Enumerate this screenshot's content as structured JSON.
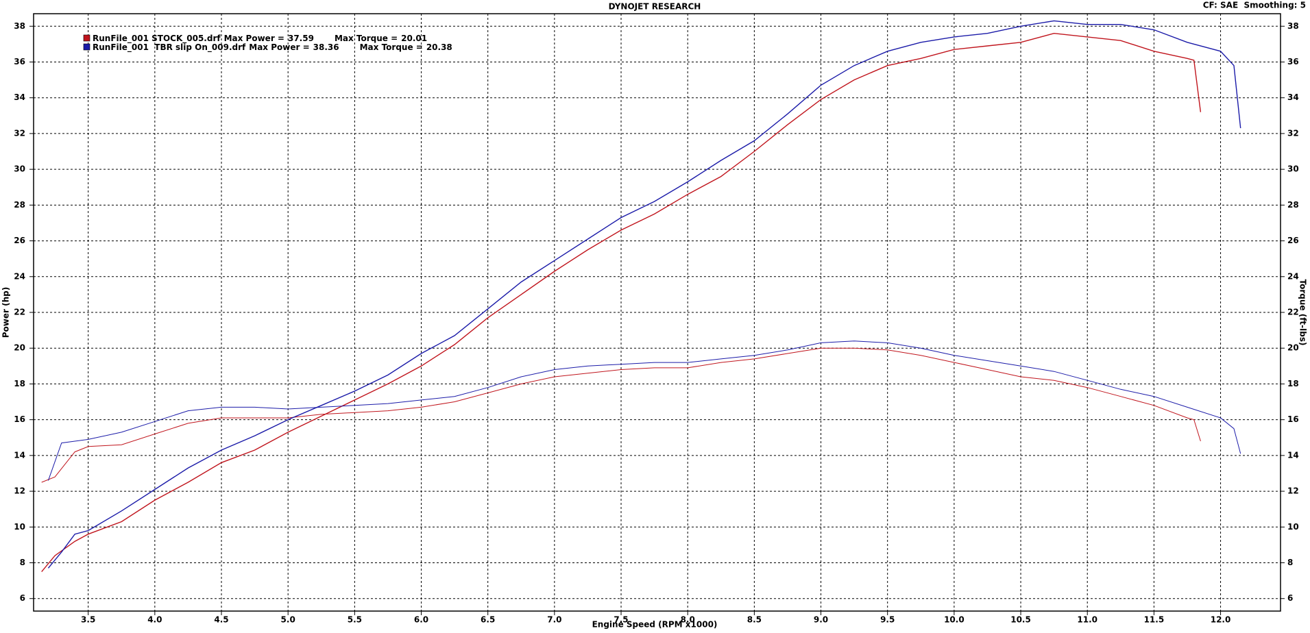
{
  "chart_data": {
    "type": "line",
    "title": "DYNOJET RESEARCH",
    "subtitle": "CF: SAE  Smoothing: 5",
    "x_label": "Engine Speed (RPM x1000)",
    "y_label": "Power (hp)",
    "y2_label": "Torque (ft-lbs)",
    "max_power_label": "Max Power =",
    "max_torque_label": "Max Torque =",
    "grid": true,
    "xlim": [
      3.09,
      12.45
    ],
    "xticks": [
      3.5,
      {
        "value": 4,
        "label": "4.0"
      },
      4.5,
      {
        "value": 5,
        "label": "5.0"
      },
      5.5,
      {
        "value": 6,
        "label": "6.0"
      },
      6.5,
      {
        "value": 7,
        "label": "7.0"
      },
      7.5,
      {
        "value": 8,
        "label": "8.0"
      },
      8.5,
      {
        "value": 9,
        "label": "9.0"
      },
      9.5,
      {
        "value": 10,
        "label": "10.0"
      },
      10.5,
      {
        "value": 11,
        "label": "11.0"
      },
      11.5,
      {
        "value": 12,
        "label": "12.0"
      }
    ],
    "ylim": [
      5.3,
      38.7
    ],
    "yticks": [
      6,
      8,
      10,
      12,
      14,
      16,
      18,
      20,
      22,
      24,
      26,
      28,
      30,
      32,
      34,
      36,
      38
    ],
    "y2lim": [
      5.3,
      38.7
    ],
    "y2ticks": [
      6,
      8,
      10,
      12,
      14,
      16,
      18,
      20,
      22,
      24,
      26,
      28,
      30,
      32,
      34,
      36,
      38
    ],
    "series": [
      {
        "name": "RunFile_001 STOCK_005.drf",
        "color": "#c0141c",
        "max_power": 37.59,
        "max_torque": 20.01,
        "x": [
          3.15,
          3.25,
          3.4,
          3.5,
          3.75,
          4,
          4.25,
          4.5,
          4.75,
          5,
          5.25,
          5.5,
          5.75,
          6,
          6.25,
          6.5,
          6.75,
          7,
          7.25,
          7.5,
          7.75,
          8,
          8.25,
          8.5,
          8.75,
          9,
          9.25,
          9.5,
          9.75,
          10,
          10.25,
          10.5,
          10.75,
          11,
          11.25,
          11.5,
          11.75,
          11.8,
          11.85
        ],
        "power": [
          7.5,
          8.4,
          9.2,
          9.6,
          10.3,
          11.5,
          12.5,
          13.6,
          14.3,
          15.3,
          16.2,
          17.1,
          18.0,
          19.0,
          20.2,
          21.7,
          23.0,
          24.3,
          25.5,
          26.6,
          27.5,
          28.6,
          29.6,
          31.0,
          32.5,
          33.9,
          35.0,
          35.8,
          36.2,
          36.7,
          36.9,
          37.1,
          37.6,
          37.4,
          37.2,
          36.6,
          36.2,
          36.1,
          33.2
        ],
        "torque": [
          12.5,
          12.8,
          14.2,
          14.5,
          14.6,
          15.2,
          15.8,
          16.1,
          16.1,
          16.1,
          16.3,
          16.4,
          16.5,
          16.7,
          17.0,
          17.5,
          18.0,
          18.4,
          18.6,
          18.8,
          18.9,
          18.9,
          19.2,
          19.4,
          19.7,
          20.0,
          20.0,
          19.9,
          19.6,
          19.2,
          18.8,
          18.4,
          18.2,
          17.8,
          17.3,
          16.8,
          16.1,
          16.0,
          14.8
        ]
      },
      {
        "name": "RunFile_001  TBR slip On_009.drf",
        "color": "#1a1aa8",
        "max_power": 38.36,
        "max_torque": 20.38,
        "x": [
          3.2,
          3.3,
          3.4,
          3.5,
          3.75,
          4,
          4.25,
          4.5,
          4.75,
          5,
          5.25,
          5.5,
          5.75,
          6,
          6.25,
          6.5,
          6.75,
          7,
          7.25,
          7.5,
          7.75,
          8,
          8.25,
          8.5,
          8.75,
          9,
          9.25,
          9.5,
          9.75,
          10,
          10.25,
          10.5,
          10.75,
          11,
          11.25,
          11.5,
          11.75,
          12,
          12.1,
          12.15
        ],
        "power": [
          7.7,
          8.6,
          9.6,
          9.8,
          10.9,
          12.1,
          13.3,
          14.3,
          15.1,
          16.0,
          16.8,
          17.6,
          18.5,
          19.7,
          20.7,
          22.2,
          23.7,
          24.9,
          26.1,
          27.3,
          28.2,
          29.3,
          30.5,
          31.6,
          33.1,
          34.7,
          35.8,
          36.6,
          37.1,
          37.4,
          37.6,
          38.0,
          38.3,
          38.1,
          38.1,
          37.8,
          37.1,
          36.6,
          35.8,
          32.3
        ],
        "torque": [
          12.6,
          14.7,
          14.8,
          14.9,
          15.3,
          15.9,
          16.5,
          16.7,
          16.7,
          16.6,
          16.7,
          16.8,
          16.9,
          17.1,
          17.3,
          17.8,
          18.4,
          18.8,
          19.0,
          19.1,
          19.2,
          19.2,
          19.4,
          19.6,
          19.9,
          20.3,
          20.4,
          20.3,
          20.0,
          19.6,
          19.3,
          19.0,
          18.7,
          18.2,
          17.7,
          17.3,
          16.7,
          16.1,
          15.5,
          14.1
        ]
      }
    ]
  }
}
